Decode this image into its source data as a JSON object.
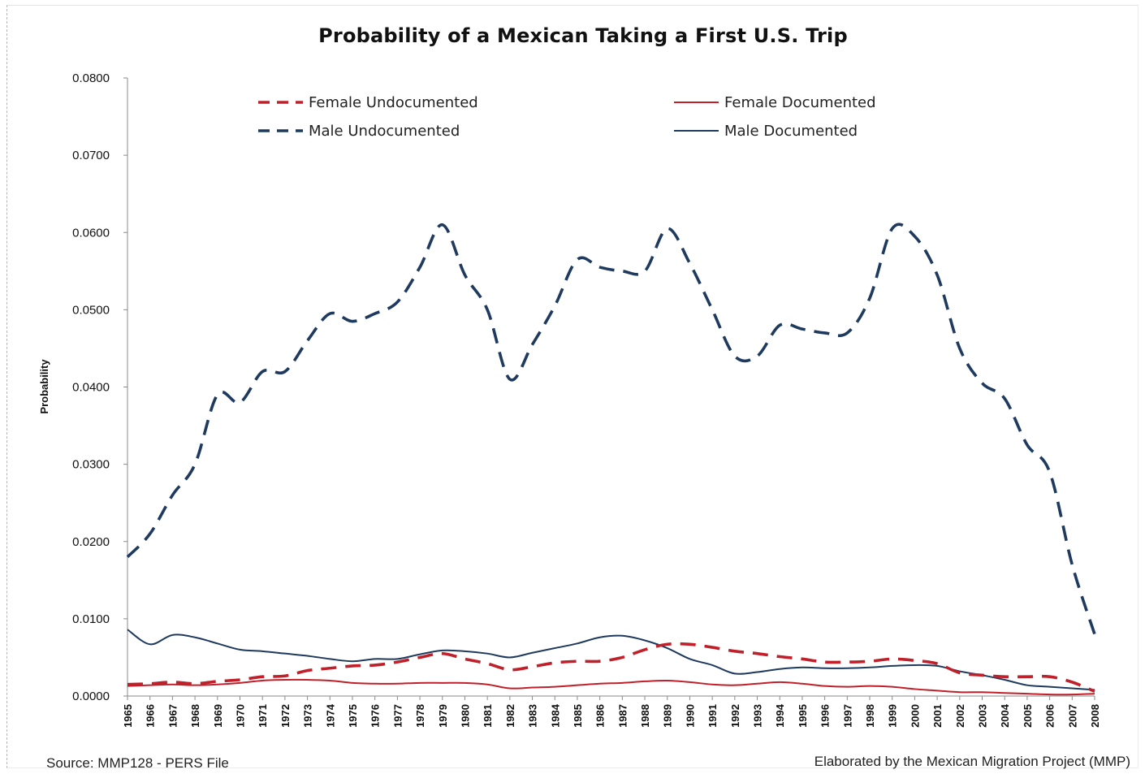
{
  "footer": {
    "source": "Source: MMP128 - PERS File",
    "credit": "Elaborated by the Mexican Migration Project (MMP)"
  },
  "chart_data": {
    "type": "line",
    "title": "Probability of a Mexican Taking a First U.S. Trip",
    "xlabel": "",
    "ylabel": "Probability",
    "ylim": [
      0,
      0.08
    ],
    "yticks": [
      "0.0000",
      "0.0100",
      "0.0200",
      "0.0300",
      "0.0400",
      "0.0500",
      "0.0600",
      "0.0700",
      "0.0800"
    ],
    "grid": false,
    "legend_position": "top",
    "x": [
      "1965",
      "1966",
      "1967",
      "1968",
      "1969",
      "1970",
      "1971",
      "1972",
      "1973",
      "1974",
      "1975",
      "1976",
      "1977",
      "1978",
      "1979",
      "1980",
      "1981",
      "1982",
      "1983",
      "1984",
      "1985",
      "1986",
      "1987",
      "1988",
      "1989",
      "1990",
      "1991",
      "1992",
      "1993",
      "1994",
      "1995",
      "1996",
      "1997",
      "1998",
      "1999",
      "2000",
      "2001",
      "2002",
      "2003",
      "2004",
      "2005",
      "2006",
      "2007",
      "2008"
    ],
    "series": [
      {
        "name": "Female Undocumented",
        "color": "#c0202a",
        "dashed": true,
        "values": [
          0.0015,
          0.0016,
          0.0018,
          0.0016,
          0.0019,
          0.0021,
          0.0025,
          0.0026,
          0.0033,
          0.0036,
          0.0039,
          0.004,
          0.0044,
          0.005,
          0.0055,
          0.0048,
          0.0042,
          0.0034,
          0.0038,
          0.0043,
          0.0045,
          0.0045,
          0.005,
          0.006,
          0.0067,
          0.0067,
          0.0063,
          0.0058,
          0.0055,
          0.0051,
          0.0048,
          0.0044,
          0.0044,
          0.0045,
          0.0048,
          0.0046,
          0.0042,
          0.003,
          0.0027,
          0.0025,
          0.0025,
          0.0025,
          0.0018,
          0.0006
        ]
      },
      {
        "name": "Female Documented",
        "color": "#c0202a",
        "dashed": false,
        "values": [
          0.0013,
          0.0014,
          0.0015,
          0.0014,
          0.0015,
          0.0017,
          0.002,
          0.0021,
          0.0021,
          0.002,
          0.0017,
          0.0016,
          0.0016,
          0.0017,
          0.0017,
          0.0017,
          0.0015,
          0.001,
          0.0011,
          0.0012,
          0.0014,
          0.0016,
          0.0017,
          0.0019,
          0.002,
          0.0018,
          0.0015,
          0.0014,
          0.0016,
          0.0018,
          0.0016,
          0.0013,
          0.0012,
          0.0013,
          0.0012,
          0.0009,
          0.0007,
          0.0005,
          0.0005,
          0.0004,
          0.0003,
          0.0002,
          0.0002,
          0.0003
        ]
      },
      {
        "name": "Male Undocumented",
        "color": "#1f3a5f",
        "dashed": true,
        "values": [
          0.018,
          0.021,
          0.026,
          0.03,
          0.039,
          0.038,
          0.042,
          0.042,
          0.046,
          0.0495,
          0.0485,
          0.0495,
          0.051,
          0.0555,
          0.061,
          0.0545,
          0.05,
          0.041,
          0.0455,
          0.0505,
          0.0565,
          0.0555,
          0.055,
          0.055,
          0.0605,
          0.056,
          0.05,
          0.044,
          0.044,
          0.048,
          0.0475,
          0.047,
          0.047,
          0.0515,
          0.0605,
          0.0595,
          0.0545,
          0.045,
          0.0405,
          0.0385,
          0.0325,
          0.029,
          0.017,
          0.008
        ]
      },
      {
        "name": "Male Documented",
        "color": "#1f3a5f",
        "dashed": false,
        "values": [
          0.0086,
          0.0067,
          0.0079,
          0.0076,
          0.0068,
          0.006,
          0.0058,
          0.0055,
          0.0052,
          0.0048,
          0.0045,
          0.0048,
          0.0048,
          0.0054,
          0.0059,
          0.0058,
          0.0055,
          0.005,
          0.0056,
          0.0062,
          0.0068,
          0.0076,
          0.0078,
          0.0072,
          0.0062,
          0.0048,
          0.004,
          0.0029,
          0.0031,
          0.0035,
          0.0037,
          0.0036,
          0.0036,
          0.0037,
          0.0039,
          0.004,
          0.0039,
          0.0032,
          0.0027,
          0.0021,
          0.0014,
          0.0012,
          0.001,
          0.0008
        ]
      }
    ]
  }
}
